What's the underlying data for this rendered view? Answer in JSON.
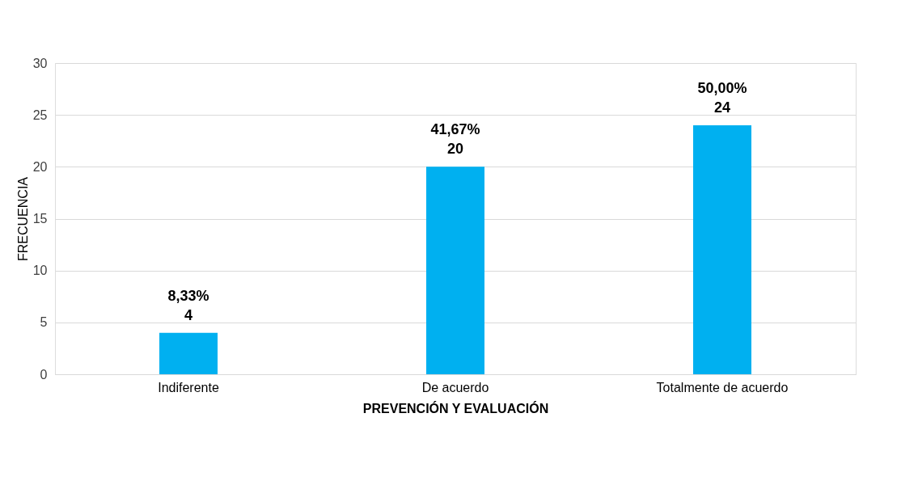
{
  "chart_data": {
    "type": "bar",
    "xlabel": "PREVENCIÓN Y EVALUACIÓN",
    "ylabel": "FRECUENCIA",
    "categories": [
      "Indiferente",
      "De acuerdo",
      "Totalmente de acuerdo"
    ],
    "values": [
      4,
      20,
      24
    ],
    "color": "#00b0f0",
    "value_labels": [
      "8,33%\n4",
      "41,67%\n20",
      "50,00%\n24"
    ],
    "ylim": [
      0,
      30
    ],
    "yticks": [
      0,
      5,
      10,
      15,
      20,
      25,
      30
    ],
    "grid": "y"
  }
}
